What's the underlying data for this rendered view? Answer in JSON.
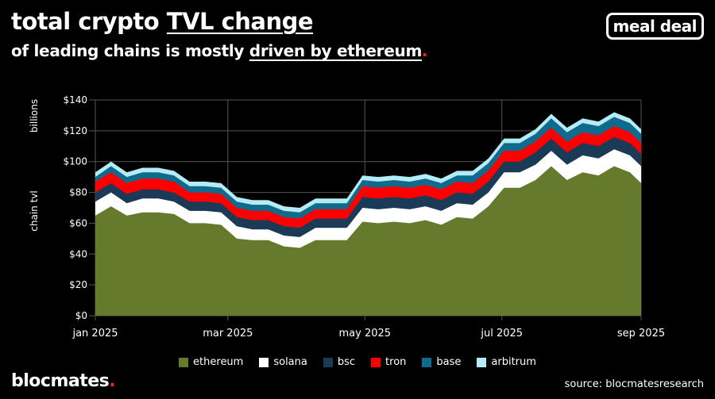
{
  "header": {
    "title_plain": "total crypto ",
    "title_underlined": "TVL change",
    "subtitle_plain": "of leading chains is mostly ",
    "subtitle_underlined": "driven by ethereum",
    "subtitle_dot": ".",
    "logo": "meal deal"
  },
  "footer": {
    "brand": "blocmates",
    "brand_dot": ".",
    "source": "source: blocmatesresearch"
  },
  "chart_data": {
    "type": "area",
    "stacked": true,
    "title": "",
    "ylabel_top": "billions",
    "ylabel": "chain tvl",
    "xlabel": "",
    "ylim": [
      0,
      140
    ],
    "yticks": [
      0,
      20,
      40,
      60,
      80,
      100,
      120,
      140
    ],
    "ytick_labels": [
      "$0",
      "$20",
      "$40",
      "$60",
      "$80",
      "$100",
      "$120",
      "$140"
    ],
    "xticks": [
      "2025-01-01",
      "2025-03-01",
      "2025-05-01",
      "2025-07-01",
      "2025-09-01"
    ],
    "xtick_labels": [
      "jan 2025",
      "mar 2025",
      "may 2025",
      "jul 2025",
      "sep 2025"
    ],
    "xlim": [
      "2025-01-01",
      "2025-09-01"
    ],
    "grid": true,
    "legend_placement": "bottom",
    "x": [
      "2025-01-01",
      "2025-01-08",
      "2025-01-15",
      "2025-01-22",
      "2025-01-29",
      "2025-02-05",
      "2025-02-12",
      "2025-02-19",
      "2025-02-26",
      "2025-03-05",
      "2025-03-12",
      "2025-03-19",
      "2025-03-26",
      "2025-04-02",
      "2025-04-09",
      "2025-04-16",
      "2025-04-23",
      "2025-04-30",
      "2025-05-07",
      "2025-05-14",
      "2025-05-21",
      "2025-05-28",
      "2025-06-04",
      "2025-06-11",
      "2025-06-18",
      "2025-06-25",
      "2025-07-02",
      "2025-07-09",
      "2025-07-16",
      "2025-07-23",
      "2025-07-30",
      "2025-08-06",
      "2025-08-13",
      "2025-08-20",
      "2025-08-27",
      "2025-09-01"
    ],
    "series": [
      {
        "name": "ethereum",
        "color": "#667a2e",
        "values": [
          65,
          71,
          65,
          67,
          67,
          66,
          60,
          60,
          59,
          50,
          49,
          49,
          45,
          44,
          49,
          49,
          49,
          61,
          60,
          61,
          60,
          62,
          59,
          64,
          63,
          71,
          83,
          83,
          88,
          97,
          88,
          93,
          91,
          97,
          93,
          86
        ]
      },
      {
        "name": "solana",
        "color": "#ffffff",
        "values": [
          9,
          9,
          8,
          9,
          9,
          8,
          8,
          8,
          8,
          8,
          7,
          7,
          7,
          7,
          8,
          8,
          8,
          9,
          9,
          9,
          9,
          9,
          9,
          9,
          9,
          9,
          10,
          10,
          10,
          10,
          10,
          11,
          11,
          11,
          11,
          11
        ]
      },
      {
        "name": "bsc",
        "color": "#1b3a55",
        "values": [
          6,
          6,
          6,
          6,
          6,
          6,
          6,
          6,
          6,
          6,
          6,
          6,
          6,
          6,
          6,
          6,
          6,
          7,
          7,
          7,
          7,
          7,
          7,
          7,
          7,
          7,
          7,
          7,
          8,
          8,
          8,
          8,
          8,
          8,
          8,
          8
        ]
      },
      {
        "name": "tron",
        "color": "#ff0000",
        "values": [
          7,
          7,
          7,
          7,
          7,
          7,
          6,
          6,
          6,
          6,
          6,
          6,
          6,
          6,
          6,
          6,
          6,
          7,
          7,
          7,
          7,
          7,
          7,
          7,
          7,
          7,
          7,
          7,
          7,
          7,
          7,
          7,
          7,
          7,
          7,
          7
        ]
      },
      {
        "name": "base",
        "color": "#0f6a8c",
        "values": [
          3,
          4,
          4,
          4,
          4,
          4,
          4,
          4,
          4,
          4,
          4,
          4,
          4,
          4,
          4,
          4,
          4,
          4,
          4,
          4,
          4,
          4,
          4,
          4,
          5,
          5,
          5,
          5,
          5,
          6,
          6,
          6,
          6,
          6,
          6,
          6
        ]
      },
      {
        "name": "arbitrum",
        "color": "#b3ecf7",
        "values": [
          3,
          3,
          3,
          3,
          3,
          3,
          3,
          3,
          3,
          3,
          3,
          3,
          3,
          3,
          3,
          3,
          3,
          3,
          3,
          3,
          3,
          3,
          3,
          3,
          3,
          3,
          3,
          3,
          3,
          3,
          3,
          3,
          3,
          3,
          3,
          3
        ]
      }
    ]
  }
}
